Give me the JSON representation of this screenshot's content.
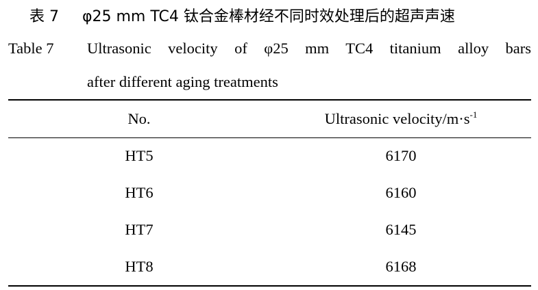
{
  "caption_cn": {
    "label": "表 7",
    "text": "φ25 mm TC4 钛合金棒材经不同时效处理后的超声声速"
  },
  "caption_en": {
    "label": "Table 7",
    "lines": [
      "Ultrasonic velocity of φ25 mm TC4 titanium alloy bars",
      "after different aging treatments"
    ]
  },
  "table": {
    "header": [
      {
        "text": "No."
      },
      {
        "text": "Ultrasonic velocity/m·s",
        "sup": "-1"
      }
    ],
    "rows": [
      [
        "HT5",
        "6170"
      ],
      [
        "HT6",
        "6160"
      ],
      [
        "HT7",
        "6145"
      ],
      [
        "HT8",
        "6168"
      ]
    ]
  }
}
